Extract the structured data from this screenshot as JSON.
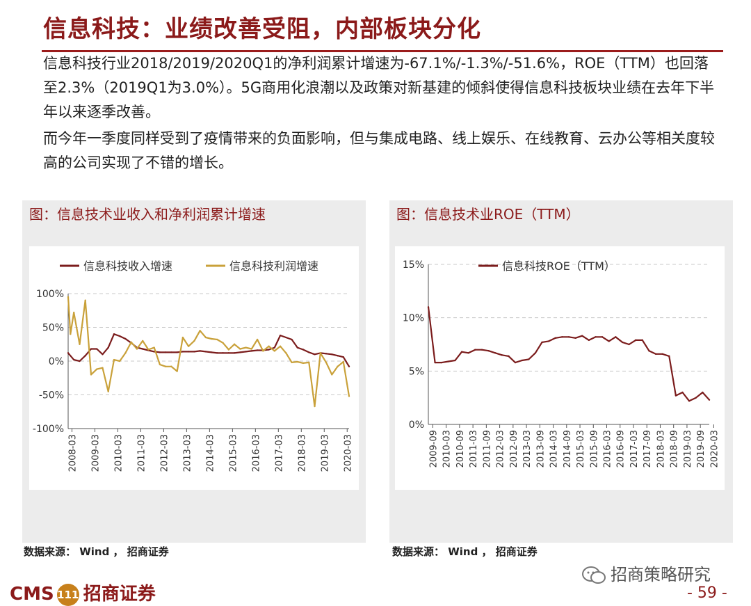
{
  "page": {
    "title": "信息科技：业绩改善受阻，内部板块分化",
    "paragraph1": "信息科技行业2018/2019/2020Q1的净利润累计增速为-67.1%/-1.3%/-51.6%，ROE（TTM）也回落至2.3%（2019Q1为3.0%）。5G商用化浪潮以及政策对新基建的倾斜使得信息科技板块业绩在去年下半年以来逐季改善。",
    "paragraph2": "而今年一季度同样受到了疫情带来的负面影响，但与集成电路、线上娱乐、在线教育、云办公等相关度较高的公司实现了不错的增长。",
    "footer": {
      "brand_cms": "CMS",
      "brand_badge": "111",
      "brand_name": "招商证券",
      "wechat": "招商策略研究",
      "page_number": "- 59 -"
    },
    "colors": {
      "title": "#8b1a1a",
      "series_revenue": "#7b1c1c",
      "series_profit": "#c9a13a"
    }
  },
  "chart_data": [
    {
      "type": "line",
      "title": "图：信息技术业收入和净利润累计增速",
      "source": "数据来源： Wind ， 招商证券",
      "ylim": [
        -100,
        100
      ],
      "yticks": [
        "100%",
        "50%",
        "0%",
        "-50%",
        "-100%"
      ],
      "ytick_values": [
        100,
        50,
        0,
        -50,
        -100
      ],
      "xticks": [
        "2008-03",
        "2009-03",
        "2010-03",
        "2011-03",
        "2012-03",
        "2013-03",
        "2014-03",
        "2015-03",
        "2016-03",
        "2017-03",
        "2018-03",
        "2019-03",
        "2020-03"
      ],
      "x_range": [
        2008.0,
        2020.25
      ],
      "grid": "horizontal dashed",
      "legend": "top",
      "series": [
        {
          "name": "信息科技收入增速",
          "color": "#7b1c1c",
          "x": [
            2008.0,
            2008.25,
            2008.5,
            2008.75,
            2009.0,
            2009.25,
            2009.5,
            2009.75,
            2010.0,
            2010.25,
            2010.5,
            2010.75,
            2011.0,
            2011.25,
            2011.5,
            2011.75,
            2012.0,
            2012.25,
            2012.5,
            2012.75,
            2013.0,
            2013.25,
            2013.5,
            2013.75,
            2014.0,
            2014.25,
            2014.5,
            2014.75,
            2015.0,
            2015.25,
            2015.5,
            2015.75,
            2016.0,
            2016.25,
            2016.5,
            2016.75,
            2017.0,
            2017.25,
            2017.5,
            2017.75,
            2018.0,
            2018.25,
            2018.5,
            2018.75,
            2019.0,
            2019.25,
            2019.5,
            2019.75,
            2020.0,
            2020.25
          ],
          "values": [
            12,
            2,
            0,
            8,
            18,
            18,
            10,
            20,
            40,
            37,
            33,
            27,
            20,
            18,
            16,
            14,
            13,
            13,
            13,
            13,
            14,
            14,
            14,
            15,
            14,
            13,
            12,
            12,
            12,
            12,
            13,
            14,
            15,
            16,
            16,
            17,
            20,
            38,
            35,
            32,
            20,
            17,
            13,
            10,
            12,
            11,
            10,
            8,
            6,
            -8
          ]
        },
        {
          "name": "信息科技利润增速",
          "color": "#c9a13a",
          "x": [
            2008.0,
            2008.1,
            2008.25,
            2008.5,
            2008.75,
            2009.0,
            2009.25,
            2009.5,
            2009.75,
            2010.0,
            2010.25,
            2010.5,
            2010.75,
            2011.0,
            2011.25,
            2011.5,
            2011.75,
            2012.0,
            2012.25,
            2012.5,
            2012.75,
            2013.0,
            2013.25,
            2013.5,
            2013.75,
            2014.0,
            2014.25,
            2014.5,
            2014.75,
            2015.0,
            2015.25,
            2015.5,
            2015.75,
            2016.0,
            2016.25,
            2016.5,
            2016.75,
            2017.0,
            2017.25,
            2017.5,
            2017.75,
            2018.0,
            2018.25,
            2018.5,
            2018.75,
            2019.0,
            2019.25,
            2019.5,
            2019.75,
            2020.0,
            2020.25
          ],
          "values": [
            95,
            40,
            72,
            25,
            90,
            -20,
            -12,
            -10,
            -45,
            2,
            0,
            12,
            28,
            18,
            30,
            17,
            20,
            -5,
            -8,
            -8,
            -15,
            35,
            22,
            30,
            45,
            35,
            33,
            32,
            27,
            17,
            25,
            18,
            20,
            18,
            32,
            15,
            22,
            15,
            22,
            12,
            -2,
            -1,
            -3,
            -2,
            -67,
            12,
            -2,
            -20,
            -8,
            -1,
            -52
          ]
        }
      ]
    },
    {
      "type": "line",
      "title": "图：信息技术业ROE（TTM）",
      "source": "数据来源： Wind ， 招商证券",
      "ylim": [
        0,
        15
      ],
      "yticks": [
        "15%",
        "10%",
        "5%",
        "0%"
      ],
      "ytick_values": [
        15,
        10,
        5,
        0
      ],
      "xticks": [
        "2009-09",
        "2010-03",
        "2010-09",
        "2011-03",
        "2011-09",
        "2012-03",
        "2012-09",
        "2013-03",
        "2013-09",
        "2014-03",
        "2014-09",
        "2015-03",
        "2015-09",
        "2016-03",
        "2016-09",
        "2017-03",
        "2017-09",
        "2018-03",
        "2018-09",
        "2019-03",
        "2019-09",
        "2020-03"
      ],
      "x_range": [
        2009.5,
        2020.0
      ],
      "grid": "horizontal dashed",
      "legend": "top",
      "series": [
        {
          "name": "信息科技ROE（TTM）",
          "color": "#7b1c1c",
          "x": [
            2009.5,
            2009.75,
            2010.0,
            2010.25,
            2010.5,
            2010.75,
            2011.0,
            2011.25,
            2011.5,
            2011.75,
            2012.0,
            2012.25,
            2012.5,
            2012.75,
            2013.0,
            2013.25,
            2013.5,
            2013.75,
            2014.0,
            2014.25,
            2014.5,
            2014.75,
            2015.0,
            2015.25,
            2015.5,
            2015.75,
            2016.0,
            2016.25,
            2016.5,
            2016.75,
            2017.0,
            2017.25,
            2017.5,
            2017.75,
            2018.0,
            2018.25,
            2018.5,
            2018.75,
            2019.0,
            2019.25,
            2019.5,
            2019.75,
            2020.0
          ],
          "values": [
            11.0,
            5.8,
            5.8,
            5.9,
            6.0,
            6.8,
            6.7,
            7.0,
            7.0,
            6.9,
            6.7,
            6.5,
            6.4,
            5.8,
            6.0,
            6.1,
            6.7,
            7.7,
            7.8,
            8.1,
            8.2,
            8.2,
            8.1,
            8.3,
            7.9,
            8.2,
            8.2,
            7.8,
            8.2,
            7.7,
            7.5,
            7.9,
            7.9,
            6.9,
            6.6,
            6.6,
            6.4,
            2.7,
            3.0,
            2.2,
            2.5,
            3.0,
            2.3
          ]
        }
      ]
    }
  ]
}
